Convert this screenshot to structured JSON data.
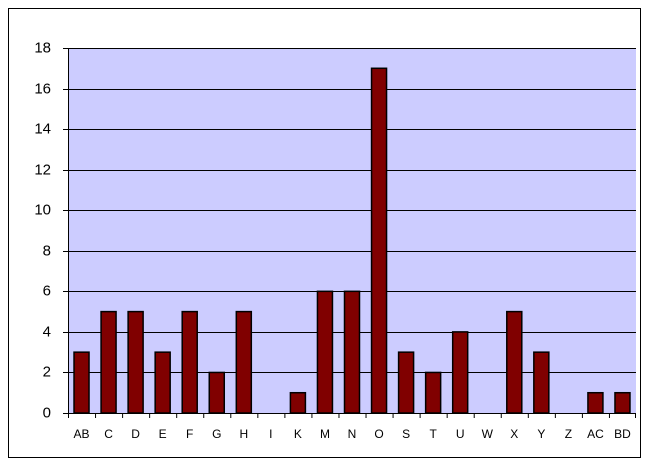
{
  "chart_data": {
    "type": "bar",
    "categories": [
      "AB",
      "C",
      "D",
      "E",
      "F",
      "G",
      "H",
      "I",
      "K",
      "M",
      "N",
      "O",
      "S",
      "T",
      "U",
      "W",
      "X",
      "Y",
      "Z",
      "AC",
      "BD"
    ],
    "values": [
      3,
      5,
      5,
      3,
      5,
      2,
      5,
      0,
      1,
      6,
      6,
      17,
      3,
      2,
      4,
      0,
      5,
      3,
      0,
      1,
      1
    ],
    "color": "#800000",
    "ylim": [
      0,
      18
    ],
    "yticks": [
      0,
      2,
      4,
      6,
      8,
      10,
      12,
      14,
      16,
      18
    ],
    "grid": true
  }
}
